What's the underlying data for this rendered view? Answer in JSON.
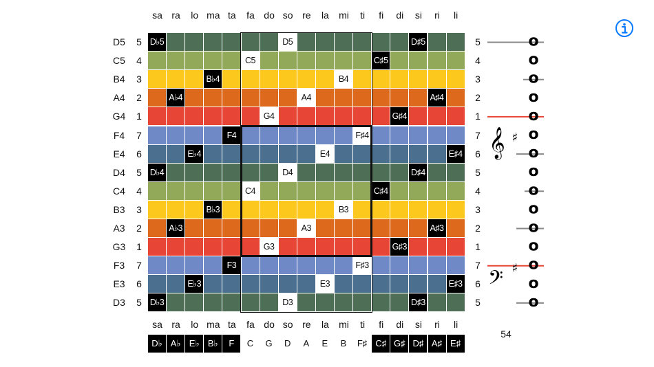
{
  "syllables": [
    "sa",
    "ra",
    "lo",
    "ma",
    "ta",
    "fa",
    "do",
    "so",
    "re",
    "la",
    "mi",
    "ti",
    "fi",
    "di",
    "si",
    "ri",
    "li"
  ],
  "rows": [
    {
      "name": "D5",
      "degree": "5",
      "right_degree": "5"
    },
    {
      "name": "C5",
      "degree": "4",
      "right_degree": "4"
    },
    {
      "name": "B4",
      "degree": "3",
      "right_degree": "3"
    },
    {
      "name": "A4",
      "degree": "2",
      "right_degree": "2"
    },
    {
      "name": "G4",
      "degree": "1",
      "right_degree": "1"
    },
    {
      "name": "F4",
      "degree": "7",
      "right_degree": "7"
    },
    {
      "name": "E4",
      "degree": "6",
      "right_degree": "6"
    },
    {
      "name": "D4",
      "degree": "5",
      "right_degree": "5"
    },
    {
      "name": "C4",
      "degree": "4",
      "right_degree": "4"
    },
    {
      "name": "B3",
      "degree": "3",
      "right_degree": "3"
    },
    {
      "name": "A3",
      "degree": "2",
      "right_degree": "2"
    },
    {
      "name": "G3",
      "degree": "1",
      "right_degree": "1"
    },
    {
      "name": "F3",
      "degree": "7",
      "right_degree": "7"
    },
    {
      "name": "E3",
      "degree": "6",
      "right_degree": "6"
    },
    {
      "name": "D3",
      "degree": "5",
      "right_degree": "5"
    }
  ],
  "degree_colors": {
    "5": "#4e6e56",
    "4": "#93a95a",
    "3": "#fdc81e",
    "2": "#dd6a1c",
    "1": "#e74636",
    "7": "#6f89c6",
    "6": "#4b6f8e"
  },
  "note_labels": [
    {
      "row": 0,
      "col": 0,
      "text": "D♭5",
      "style": "acc"
    },
    {
      "row": 0,
      "col": 7,
      "text": "D5",
      "style": "nat"
    },
    {
      "row": 0,
      "col": 14,
      "text": "D♯5",
      "style": "acc"
    },
    {
      "row": 1,
      "col": 5,
      "text": "C5",
      "style": "nat"
    },
    {
      "row": 1,
      "col": 12,
      "text": "C♯5",
      "style": "acc"
    },
    {
      "row": 2,
      "col": 3,
      "text": "B♭4",
      "style": "acc"
    },
    {
      "row": 2,
      "col": 10,
      "text": "B4",
      "style": "nat"
    },
    {
      "row": 3,
      "col": 1,
      "text": "A♭4",
      "style": "acc"
    },
    {
      "row": 3,
      "col": 8,
      "text": "A4",
      "style": "nat"
    },
    {
      "row": 3,
      "col": 15,
      "text": "A♯4",
      "style": "acc"
    },
    {
      "row": 4,
      "col": 6,
      "text": "G4",
      "style": "nat"
    },
    {
      "row": 4,
      "col": 13,
      "text": "G♯4",
      "style": "acc"
    },
    {
      "row": 5,
      "col": 4,
      "text": "F4",
      "style": "acc"
    },
    {
      "row": 5,
      "col": 11,
      "text": "F♯4",
      "style": "nat"
    },
    {
      "row": 6,
      "col": 2,
      "text": "E♭4",
      "style": "acc"
    },
    {
      "row": 6,
      "col": 9,
      "text": "E4",
      "style": "nat"
    },
    {
      "row": 6,
      "col": 16,
      "text": "E♯4",
      "style": "acc"
    },
    {
      "row": 7,
      "col": 0,
      "text": "D♭4",
      "style": "acc"
    },
    {
      "row": 7,
      "col": 7,
      "text": "D4",
      "style": "nat"
    },
    {
      "row": 7,
      "col": 14,
      "text": "D♯4",
      "style": "acc"
    },
    {
      "row": 8,
      "col": 5,
      "text": "C4",
      "style": "nat"
    },
    {
      "row": 8,
      "col": 12,
      "text": "C♯4",
      "style": "acc"
    },
    {
      "row": 9,
      "col": 3,
      "text": "B♭3",
      "style": "acc"
    },
    {
      "row": 9,
      "col": 10,
      "text": "B3",
      "style": "nat"
    },
    {
      "row": 10,
      "col": 1,
      "text": "A♭3",
      "style": "acc"
    },
    {
      "row": 10,
      "col": 8,
      "text": "A3",
      "style": "nat"
    },
    {
      "row": 10,
      "col": 15,
      "text": "A♯3",
      "style": "acc"
    },
    {
      "row": 11,
      "col": 6,
      "text": "G3",
      "style": "nat"
    },
    {
      "row": 11,
      "col": 13,
      "text": "G♯3",
      "style": "acc"
    },
    {
      "row": 12,
      "col": 4,
      "text": "F3",
      "style": "acc"
    },
    {
      "row": 12,
      "col": 11,
      "text": "F♯3",
      "style": "nat"
    },
    {
      "row": 13,
      "col": 2,
      "text": "E♭3",
      "style": "acc"
    },
    {
      "row": 13,
      "col": 9,
      "text": "E3",
      "style": "nat"
    },
    {
      "row": 13,
      "col": 16,
      "text": "E♯3",
      "style": "acc"
    },
    {
      "row": 14,
      "col": 0,
      "text": "D♭3",
      "style": "acc"
    },
    {
      "row": 14,
      "col": 7,
      "text": "D3",
      "style": "nat"
    },
    {
      "row": 14,
      "col": 14,
      "text": "D♯3",
      "style": "acc"
    }
  ],
  "key_row": [
    {
      "text": "D♭",
      "style": "acc"
    },
    {
      "text": "A♭",
      "style": "acc"
    },
    {
      "text": "E♭",
      "style": "acc"
    },
    {
      "text": "B♭",
      "style": "acc"
    },
    {
      "text": "F",
      "style": "acc"
    },
    {
      "text": "C",
      "style": "nat"
    },
    {
      "text": "G",
      "style": "nat"
    },
    {
      "text": "D",
      "style": "nat"
    },
    {
      "text": "A",
      "style": "nat"
    },
    {
      "text": "E",
      "style": "nat"
    },
    {
      "text": "B",
      "style": "nat"
    },
    {
      "text": "F♯",
      "style": "nat"
    },
    {
      "text": "C♯",
      "style": "acc"
    },
    {
      "text": "G♯",
      "style": "acc"
    },
    {
      "text": "D♯",
      "style": "acc"
    },
    {
      "text": "A♯",
      "style": "acc"
    },
    {
      "text": "E♯",
      "style": "acc"
    }
  ],
  "staff": {
    "treble_clef_glyph": "𝄞",
    "bass_clef_glyph": "𝄢",
    "sharp_glyph": "♯",
    "note_glyph": "o",
    "highlight_color": "#e74636"
  },
  "count_label": "54",
  "info_icon": "info-circle-icon",
  "accent_color": "#0a7aff"
}
